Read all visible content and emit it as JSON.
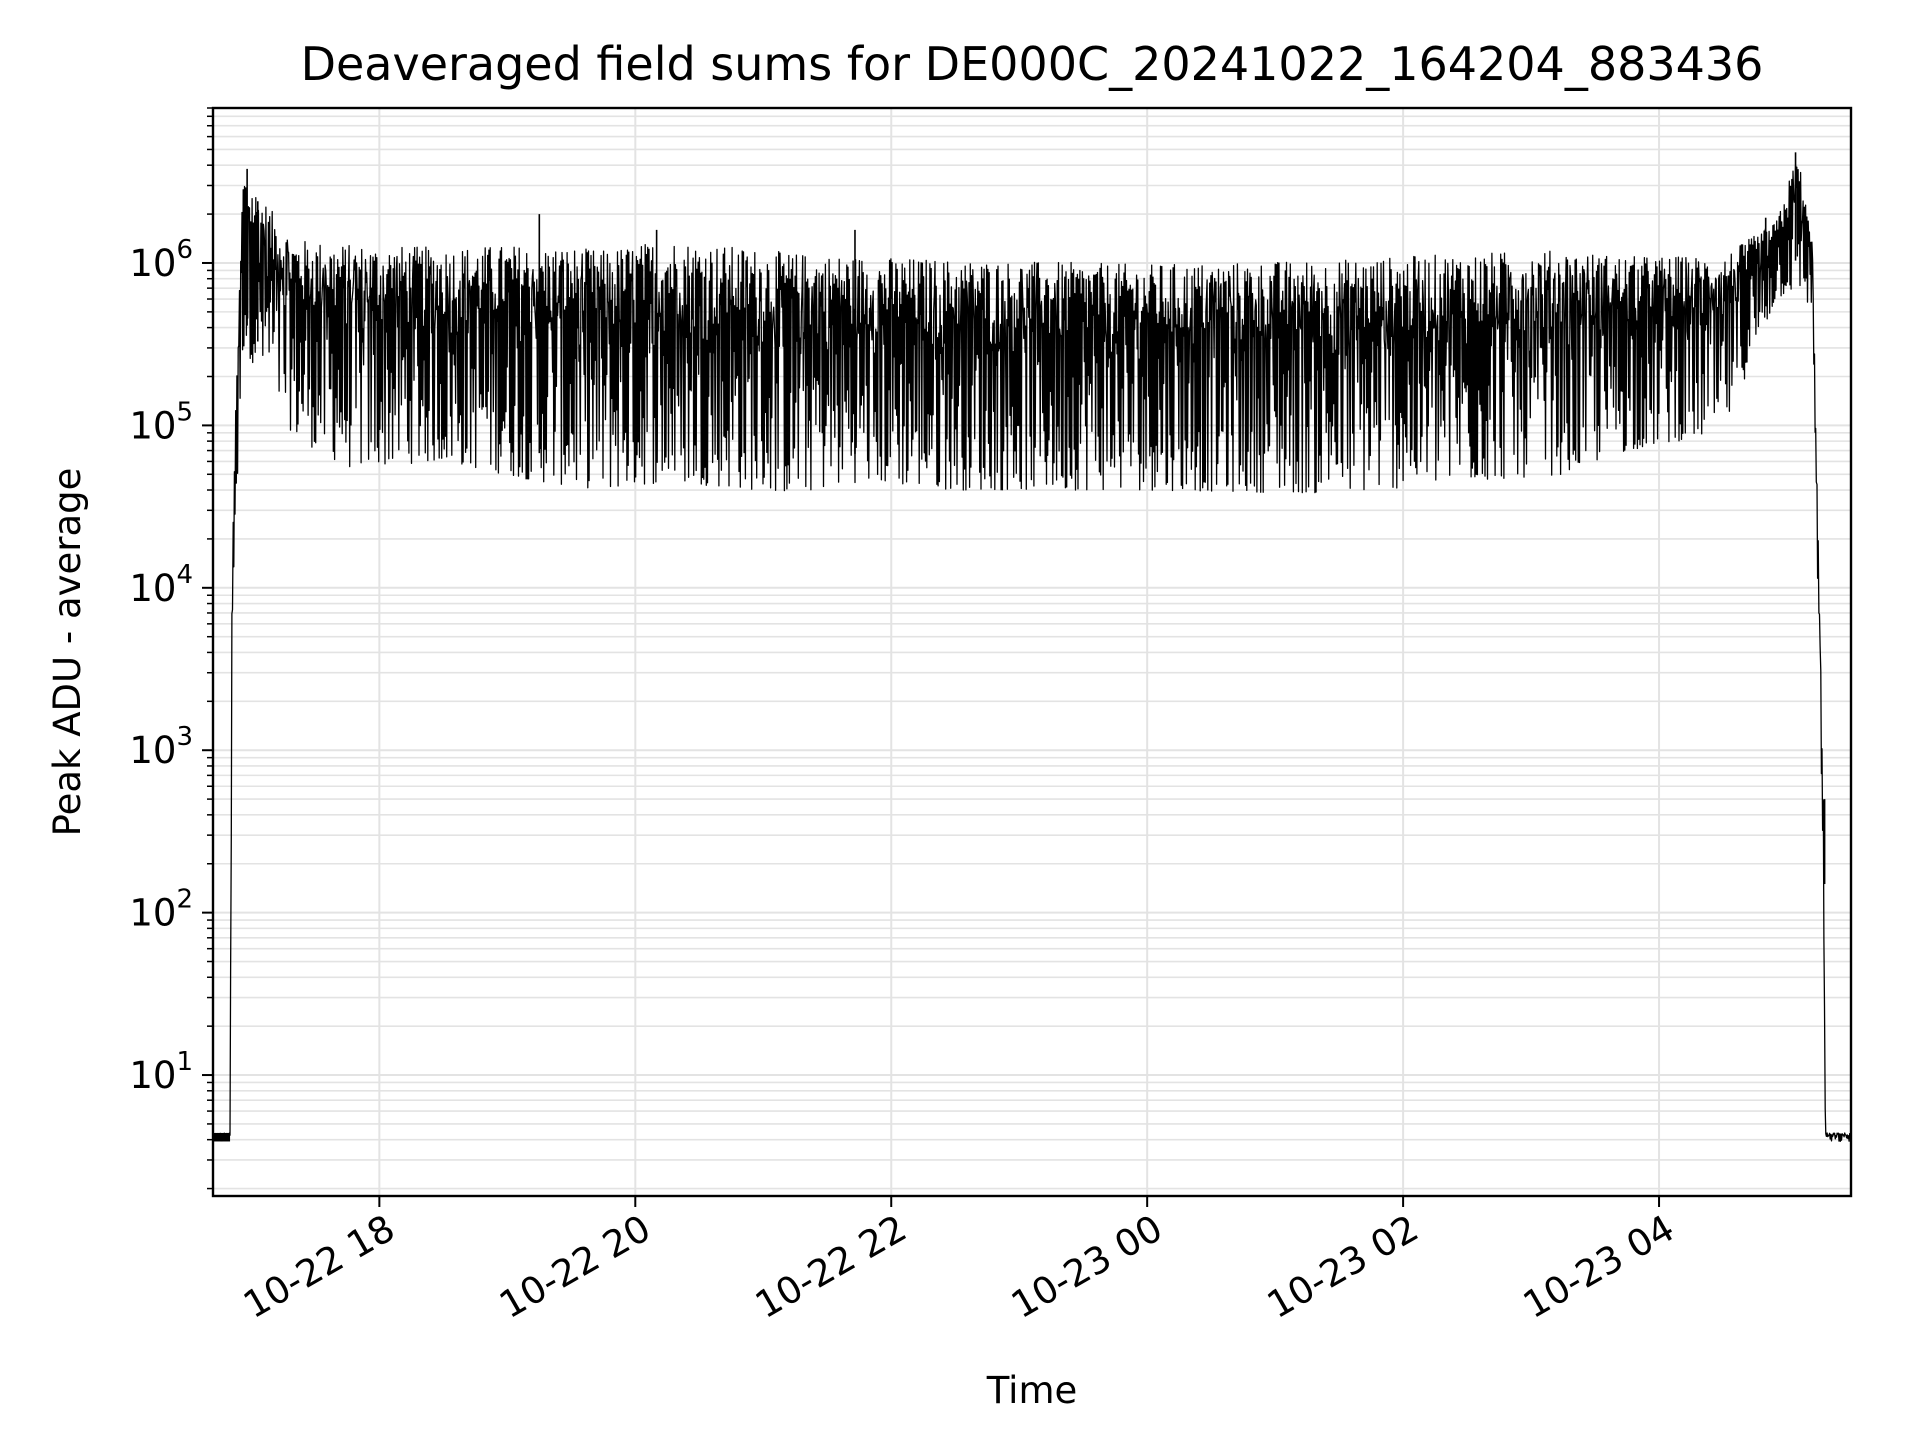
{
  "chart_data": {
    "type": "line",
    "title": "Deaveraged field sums for DE000C_20241022_164204_883436",
    "xlabel": "Time",
    "ylabel": "Peak ADU - average",
    "yscale": "log",
    "grid": true,
    "x_range": [
      "2024-10-22 16:42",
      "2024-10-23 05:30"
    ],
    "ylim": [
      1.8,
      9000000
    ],
    "x_ticks": [
      "10-22 18",
      "10-22 20",
      "10-22 22",
      "10-23 00",
      "10-23 02",
      "10-23 04"
    ],
    "y_ticks": [
      {
        "base": "10",
        "exp": "1"
      },
      {
        "base": "10",
        "exp": "2"
      },
      {
        "base": "10",
        "exp": "3"
      },
      {
        "base": "10",
        "exp": "4"
      },
      {
        "base": "10",
        "exp": "5"
      },
      {
        "base": "10",
        "exp": "6"
      }
    ],
    "line_color": "#000000",
    "series": [
      {
        "envelope": [
          {
            "x": "2024-10-22 16:42",
            "low": 3.9,
            "high": 4.4
          },
          {
            "x": "2024-10-22 16:50",
            "low": 3.9,
            "high": 4.4
          },
          {
            "x": "2024-10-22 16:51",
            "low": 6000,
            "high": 24000
          },
          {
            "x": "2024-10-22 16:56",
            "low": 300000,
            "high": 3700000
          },
          {
            "x": "2024-10-22 17:05",
            "low": 200000,
            "high": 2500000
          },
          {
            "x": "2024-10-22 17:20",
            "low": 85000,
            "high": 1400000
          },
          {
            "x": "2024-10-22 17:45",
            "low": 55000,
            "high": 1300000
          },
          {
            "x": "2024-10-22 18:30",
            "low": 60000,
            "high": 1250000
          },
          {
            "x": "2024-10-22 19:15",
            "low": 45000,
            "high": 1300000
          },
          {
            "x": "2024-10-22 19:45",
            "low": 40000,
            "high": 1200000
          },
          {
            "x": "2024-10-22 20:15",
            "low": 45000,
            "high": 1400000
          },
          {
            "x": "2024-10-22 21:15",
            "low": 38000,
            "high": 1150000
          },
          {
            "x": "2024-10-22 21:45",
            "low": 45000,
            "high": 1100000
          },
          {
            "x": "2024-10-22 22:30",
            "low": 40000,
            "high": 1050000
          },
          {
            "x": "2024-10-23 00:00",
            "low": 40000,
            "high": 980000
          },
          {
            "x": "2024-10-23 01:30",
            "low": 38000,
            "high": 1050000
          },
          {
            "x": "2024-10-23 02:30",
            "low": 45000,
            "high": 1150000
          },
          {
            "x": "2024-10-23 03:15",
            "low": 50000,
            "high": 1200000
          },
          {
            "x": "2024-10-23 03:45",
            "low": 70000,
            "high": 1100000
          },
          {
            "x": "2024-10-23 04:30",
            "low": 90000,
            "high": 1100000
          },
          {
            "x": "2024-10-23 04:55",
            "low": 600000,
            "high": 1800000
          },
          {
            "x": "2024-10-23 05:05",
            "low": 700000,
            "high": 4800000
          },
          {
            "x": "2024-10-23 05:12",
            "low": 500000,
            "high": 1300000
          },
          {
            "x": "2024-10-23 05:17",
            "low": 150,
            "high": 500
          },
          {
            "x": "2024-10-23 05:18",
            "low": 3.9,
            "high": 4.4
          },
          {
            "x": "2024-10-23 05:30",
            "low": 3.9,
            "high": 4.4
          }
        ],
        "spikes": [
          {
            "x": "2024-10-22 16:58",
            "value": 3800000
          },
          {
            "x": "2024-10-22 17:03",
            "value": 2400000
          },
          {
            "x": "2024-10-22 19:15",
            "value": 2000000
          },
          {
            "x": "2024-10-22 20:10",
            "value": 1600000
          },
          {
            "x": "2024-10-22 21:43",
            "value": 1600000
          },
          {
            "x": "2024-10-23 04:50",
            "value": 1900000
          },
          {
            "x": "2024-10-23 05:04",
            "value": 4800000
          }
        ]
      }
    ]
  }
}
